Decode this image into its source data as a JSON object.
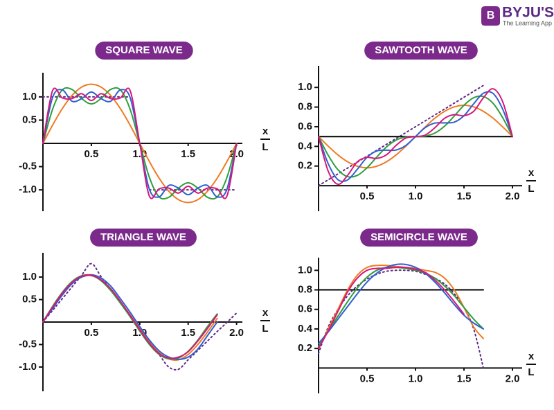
{
  "logo": {
    "name": "BYJU'S",
    "tagline": "The Learning App"
  },
  "chart_data": [
    {
      "type": "line",
      "title": "SQUARE WAVE",
      "xlabel": {
        "numerator": "x",
        "denominator": "L"
      },
      "x": [
        0,
        0.1,
        0.2,
        0.3,
        0.4,
        0.5,
        0.6,
        0.7,
        0.8,
        0.9,
        1.0,
        1.1,
        1.2,
        1.3,
        1.4,
        1.5,
        1.6,
        1.7,
        1.8,
        1.9,
        2.0
      ],
      "xlim": [
        0,
        2.06
      ],
      "ylim": [
        -1.46,
        1.52
      ],
      "xticks": [
        0.5,
        {
          "value": 1,
          "label": "1.0"
        },
        1.5,
        {
          "value": 2,
          "label": "2.0"
        }
      ],
      "yticks": [
        {
          "value": -1,
          "label": "-1.0"
        },
        -0.5,
        0.5,
        {
          "value": 1,
          "label": "1.0"
        }
      ],
      "series": [
        {
          "color": "#5b2a86",
          "style": "dotted",
          "values": [
            1,
            1,
            1,
            1,
            1,
            1,
            1,
            1,
            1,
            1,
            null,
            -1,
            -1,
            -1,
            -1,
            -1,
            -1,
            -1,
            -1,
            -1,
            -1
          ]
        },
        {
          "color": "#f07a24",
          "style": "solid",
          "values": [
            0,
            0.393,
            0.748,
            1.03,
            1.211,
            1.273,
            1.211,
            1.03,
            0.748,
            0.393,
            0,
            -0.393,
            -0.748,
            -1.03,
            -1.211,
            -1.273,
            -1.211,
            -1.03,
            -0.748,
            -0.393,
            0
          ]
        },
        {
          "color": "#2e9e3c",
          "style": "solid",
          "values": [
            0,
            0.736,
            1.151,
            1.161,
            0.962,
            0.849,
            0.962,
            1.161,
            1.151,
            0.736,
            0,
            -0.736,
            -1.151,
            -1.161,
            -0.962,
            -0.849,
            -0.962,
            -1.161,
            -1.151,
            -0.736,
            0
          ]
        },
        {
          "color": "#2f5fd0",
          "style": "solid",
          "values": [
            0,
            0.991,
            1.151,
            0.906,
            0.962,
            1.104,
            0.962,
            0.906,
            1.151,
            0.991,
            0,
            -0.991,
            -1.151,
            -0.906,
            -0.962,
            -1.104,
            -0.962,
            -0.906,
            -1.151,
            -0.991,
            0
          ]
        },
        {
          "color": "#d6177a",
          "style": "solid",
          "values": [
            0,
            1.138,
            0.978,
            0.962,
            1.069,
            0.922,
            1.069,
            0.962,
            0.978,
            1.138,
            0,
            -1.138,
            -0.978,
            -0.962,
            -1.069,
            -0.922,
            -1.069,
            -0.962,
            -0.978,
            -1.138,
            0
          ]
        }
      ]
    },
    {
      "type": "line",
      "title": "SAWTOOTH WAVE",
      "xlabel": {
        "numerator": "x",
        "denominator": "L"
      },
      "x": [
        0,
        0.1,
        0.2,
        0.3,
        0.4,
        0.5,
        0.6,
        0.7,
        0.8,
        0.9,
        1.0,
        1.1,
        1.2,
        1.3,
        1.4,
        1.5,
        1.6,
        1.7,
        1.8,
        1.9,
        2.0
      ],
      "xlim": [
        0,
        2.1
      ],
      "ylim": [
        -0.26,
        1.22
      ],
      "xticks": [
        0.5,
        {
          "value": 1,
          "label": "1.0"
        },
        1.5,
        {
          "value": 2,
          "label": "2.0"
        }
      ],
      "yticks": [
        0.2,
        0.4,
        0.6,
        0.8,
        {
          "value": 1,
          "label": "1.0"
        }
      ],
      "series": [
        {
          "color": "#000000",
          "style": "solid",
          "values": [
            0.5,
            0.5,
            0.5,
            0.5,
            0.5,
            0.5,
            0.5,
            0.5,
            0.5,
            0.5,
            0.5,
            0.5,
            0.5,
            0.5,
            0.5,
            0.5,
            0.5,
            0.5,
            0.5,
            0.5,
            0.5
          ]
        },
        {
          "color": "#5b2a86",
          "style": "dotted",
          "values": [
            0,
            0.06,
            0.12,
            0.18,
            0.24,
            0.3,
            0.36,
            0.42,
            0.48,
            0.54,
            0.6,
            0.66,
            0.72,
            0.78,
            0.84,
            0.9,
            0.96,
            1.02,
            null,
            null,
            null
          ]
        },
        {
          "color": "#f07a24",
          "style": "solid",
          "values": [
            0.5,
            0.402,
            0.313,
            0.243,
            0.198,
            0.182,
            0.198,
            0.243,
            0.313,
            0.402,
            0.5,
            0.598,
            0.687,
            0.757,
            0.802,
            0.818,
            0.802,
            0.757,
            0.687,
            0.598,
            0.5
          ]
        },
        {
          "color": "#2e9e3c",
          "style": "solid",
          "values": [
            0.5,
            0.309,
            0.162,
            0.092,
            0.105,
            0.182,
            0.291,
            0.394,
            0.464,
            0.495,
            0.5,
            0.505,
            0.536,
            0.606,
            0.709,
            0.818,
            0.895,
            0.908,
            0.838,
            0.691,
            0.5
          ]
        },
        {
          "color": "#2f5fd0",
          "style": "solid",
          "values": [
            0.5,
            0.223,
            0.061,
            0.059,
            0.167,
            0.288,
            0.353,
            0.361,
            0.363,
            0.409,
            0.5,
            0.591,
            0.637,
            0.639,
            0.647,
            0.712,
            0.833,
            0.941,
            0.939,
            0.777,
            0.5
          ]
        },
        {
          "color": "#d6177a",
          "style": "solid",
          "values": [
            0.5,
            0.147,
            0.014,
            0.106,
            0.243,
            0.288,
            0.277,
            0.314,
            0.41,
            0.485,
            0.5,
            0.515,
            0.59,
            0.686,
            0.723,
            0.712,
            0.757,
            0.894,
            0.986,
            0.853,
            0.5
          ]
        }
      ]
    },
    {
      "type": "line",
      "title": "TRIANGLE WAVE",
      "xlabel": {
        "numerator": "x",
        "denominator": "L"
      },
      "x": [
        0,
        0.1,
        0.2,
        0.3,
        0.4,
        0.5,
        0.6,
        0.7,
        0.8,
        0.9,
        1.0,
        1.1,
        1.2,
        1.3,
        1.4,
        1.5,
        1.6,
        1.7,
        1.8,
        1.9,
        2.0
      ],
      "xlim": [
        0,
        2.06
      ],
      "ylim": [
        -1.54,
        1.54
      ],
      "xticks": [
        0.5,
        {
          "value": 1,
          "label": "1.0"
        },
        1.5,
        {
          "value": 2,
          "label": "2.0"
        }
      ],
      "yticks": [
        {
          "value": -1,
          "label": "-1.0"
        },
        -0.5,
        0.5,
        {
          "value": 1,
          "label": "1.0"
        }
      ],
      "series": [
        {
          "color": "#5b2a86",
          "style": "dotted",
          "values": [
            0,
            0.26,
            0.52,
            0.78,
            1.04,
            1.3,
            1.01,
            0.72,
            0.44,
            0.15,
            -0.14,
            -0.43,
            -0.72,
            -1.0,
            -1.05,
            -0.84,
            -0.63,
            -0.42,
            -0.21,
            -0.01,
            0.2
          ]
        },
        {
          "color": "#f07a24",
          "style": "solid",
          "values": [
            0,
            0.32,
            0.62,
            0.86,
            1.0,
            1.03,
            0.93,
            0.72,
            0.45,
            0.16,
            -0.15,
            -0.45,
            -0.68,
            -0.82,
            -0.84,
            -0.72,
            -0.5,
            -0.22,
            0.08,
            null,
            null
          ]
        },
        {
          "color": "#2e9e3c",
          "style": "solid",
          "values": [
            0,
            0.35,
            0.66,
            0.9,
            1.03,
            1.04,
            0.92,
            0.7,
            0.42,
            0.12,
            -0.2,
            -0.5,
            -0.72,
            -0.82,
            -0.8,
            -0.65,
            -0.4,
            -0.1,
            0.18,
            null,
            null
          ]
        },
        {
          "color": "#2f5fd0",
          "style": "solid",
          "values": [
            0,
            0.3,
            0.6,
            0.85,
            1.0,
            1.05,
            0.98,
            0.8,
            0.52,
            0.22,
            -0.1,
            -0.4,
            -0.64,
            -0.78,
            -0.83,
            -0.78,
            -0.6,
            -0.3,
            0,
            null,
            null
          ]
        },
        {
          "color": "#d6177a",
          "style": "solid",
          "values": [
            0,
            0.33,
            0.64,
            0.88,
            1.02,
            1.04,
            0.94,
            0.74,
            0.46,
            0.15,
            -0.17,
            -0.47,
            -0.7,
            -0.8,
            -0.78,
            -0.66,
            -0.42,
            -0.14,
            0.16,
            null,
            null
          ]
        }
      ]
    },
    {
      "type": "line",
      "title": "SEMICIRCLE WAVE",
      "xlabel": {
        "numerator": "x",
        "denominator": "L"
      },
      "x": [
        0,
        0.1,
        0.2,
        0.3,
        0.4,
        0.5,
        0.6,
        0.7,
        0.8,
        0.9,
        1.0,
        1.1,
        1.2,
        1.3,
        1.4,
        1.5,
        1.6,
        1.7
      ],
      "xlim": [
        0,
        2.1
      ],
      "ylim": [
        -0.26,
        1.13
      ],
      "xticks": [
        0.5,
        {
          "value": 1,
          "label": "1.0"
        },
        1.5,
        {
          "value": 2,
          "label": "2.0"
        }
      ],
      "yticks": [
        0.2,
        0.4,
        0.6,
        0.8,
        {
          "value": 1,
          "label": "1.0"
        }
      ],
      "series": [
        {
          "color": "#000000",
          "style": "solid",
          "values": [
            0.8,
            0.8,
            0.8,
            0.8,
            0.8,
            0.8,
            0.8,
            0.8,
            0.8,
            0.8,
            0.8,
            0.8,
            0.8,
            0.8,
            0.8,
            0.8,
            0.8,
            0.8
          ]
        },
        {
          "color": "#5b2a86",
          "style": "dotted",
          "values": [
            0.15,
            0.42,
            0.6,
            0.74,
            0.84,
            0.91,
            0.96,
            0.99,
            1.0,
            1.0,
            0.99,
            0.96,
            0.92,
            0.86,
            0.76,
            0.62,
            0.4,
            0
          ]
        },
        {
          "color": "#f07a24",
          "style": "solid",
          "values": [
            0.2,
            0.4,
            0.6,
            0.8,
            0.95,
            1.03,
            1.05,
            1.05,
            1.04,
            1.03,
            1.02,
            1.0,
            0.98,
            0.92,
            0.8,
            0.62,
            0.42,
            0.3
          ]
        },
        {
          "color": "#2e9e3c",
          "style": "solid",
          "values": [
            0.22,
            0.38,
            0.53,
            0.68,
            0.82,
            0.93,
            1.0,
            1.03,
            1.03,
            1.02,
            1.0,
            0.97,
            0.92,
            0.84,
            0.74,
            0.62,
            0.5,
            0.4
          ]
        },
        {
          "color": "#2f5fd0",
          "style": "solid",
          "values": [
            0.25,
            0.37,
            0.5,
            0.63,
            0.76,
            0.88,
            0.97,
            1.03,
            1.06,
            1.06,
            1.03,
            0.97,
            0.88,
            0.77,
            0.65,
            0.54,
            0.46,
            0.4
          ]
        },
        {
          "color": "#d6177a",
          "style": "solid",
          "values": [
            0.2,
            0.38,
            0.58,
            0.78,
            0.92,
            1.0,
            1.02,
            1.02,
            1.03,
            1.03,
            1.01,
            0.98,
            0.9,
            0.8,
            0.68,
            0.55,
            null,
            null
          ]
        }
      ]
    }
  ]
}
